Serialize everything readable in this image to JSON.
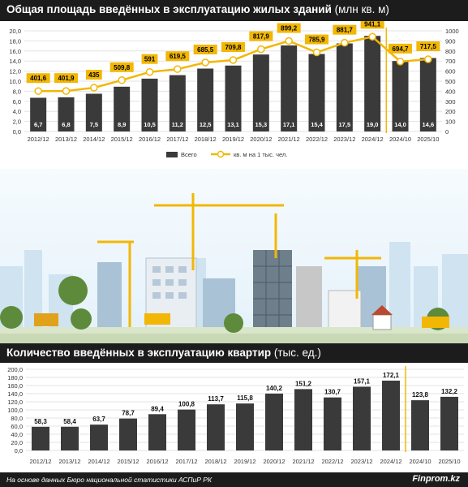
{
  "chart_data": [
    {
      "type": "bar",
      "title_bold": "Общая площадь введённых в эксплуатацию жилых зданий",
      "title_unit": " (млн кв. м)",
      "categories": [
        "2012/12",
        "2013/12",
        "2014/12",
        "2015/12",
        "2016/12",
        "2017/12",
        "2018/12",
        "2019/12",
        "2020/12",
        "2021/12",
        "2022/12",
        "2023/12",
        "2024/12",
        "2024/10",
        "2025/10"
      ],
      "series": [
        {
          "name": "Всего",
          "kind": "bar",
          "axis": "left",
          "color": "#3a3a3a",
          "values": [
            6.7,
            6.8,
            7.5,
            8.9,
            10.5,
            11.2,
            12.5,
            13.1,
            15.3,
            17.1,
            15.4,
            17.5,
            19.0,
            14.0,
            14.6
          ],
          "labels": [
            "6,7",
            "6,8",
            "7,5",
            "8,9",
            "10,5",
            "11,2",
            "12,5",
            "13,1",
            "15,3",
            "17,1",
            "15,4",
            "17,5",
            "19,0",
            "14,0",
            "14,6"
          ]
        },
        {
          "name": "кв. м на 1 тыс. чел.",
          "kind": "line",
          "axis": "right",
          "color": "#f2b705",
          "values": [
            401.6,
            401.9,
            435,
            509.8,
            591,
            619.5,
            685.5,
            709.8,
            817.9,
            899.2,
            785.9,
            881.7,
            941.1,
            694.7,
            717.5
          ],
          "labels": [
            "401,6",
            "401,9",
            "435",
            "509,8",
            "591",
            "619,5",
            "685,5",
            "709,8",
            "817,9",
            "899,2",
            "785,9",
            "881,7",
            "941,1",
            "694,7",
            "717,5"
          ]
        }
      ],
      "left_axis": {
        "min": 0,
        "max": 20,
        "ticks": [
          "0,0",
          "2,0",
          "4,0",
          "6,0",
          "8,0",
          "10,0",
          "12,0",
          "14,0",
          "16,0",
          "18,0",
          "20,0"
        ]
      },
      "right_axis": {
        "min": 0,
        "max": 1000,
        "ticks": [
          "0",
          "100",
          "200",
          "300",
          "400",
          "500",
          "600",
          "700",
          "800",
          "900",
          "1000"
        ]
      },
      "legend": [
        "Всего",
        "кв. м на 1 тыс. чел."
      ],
      "legend_position": "bottom-center",
      "divider_after_index": 12,
      "divider_color": "#f2b705",
      "grid": true
    },
    {
      "type": "bar",
      "title_bold": "Количество введённых в эксплуатацию квартир",
      "title_unit": " (тыс. ед.)",
      "categories": [
        "2012/12",
        "2013/12",
        "2014/12",
        "2015/12",
        "2016/12",
        "2017/12",
        "2018/12",
        "2019/12",
        "2020/12",
        "2021/12",
        "2022/12",
        "2023/12",
        "2024/12",
        "2024/10",
        "2025/10"
      ],
      "series": [
        {
          "kind": "bar",
          "color": "#3a3a3a",
          "values": [
            58.3,
            58.4,
            63.7,
            78.7,
            89.4,
            100.8,
            113.7,
            115.8,
            140.2,
            151.2,
            130.7,
            157.1,
            172.1,
            123.8,
            132.2
          ],
          "labels": [
            "58,3",
            "58,4",
            "63,7",
            "78,7",
            "89,4",
            "100,8",
            "113,7",
            "115,8",
            "140,2",
            "151,2",
            "130,7",
            "157,1",
            "172,1",
            "123,8",
            "132,2"
          ]
        }
      ],
      "left_axis": {
        "min": 0,
        "max": 200,
        "ticks": [
          "0,0",
          "20,0",
          "40,0",
          "60,0",
          "80,0",
          "100,0",
          "120,0",
          "140,0",
          "160,0",
          "180,0",
          "200,0"
        ]
      },
      "divider_after_index": 12,
      "divider_color": "#f2b705",
      "grid": true
    }
  ],
  "footer": {
    "source": "На основе данных Бюро национальной статистики АСПиР РК",
    "brand": "Finprom.kz"
  },
  "illustration": {
    "description_icon": "construction-site-illustration"
  }
}
